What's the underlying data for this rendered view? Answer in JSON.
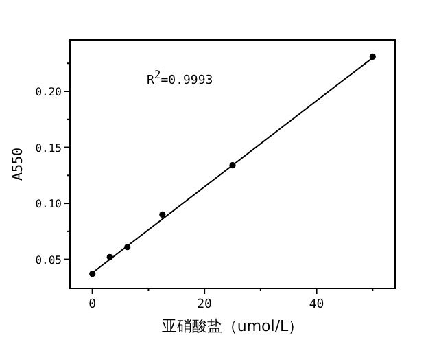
{
  "chart_data": {
    "type": "scatter",
    "xlabel": "亚硝酸盐（umol/L）",
    "ylabel": "A550",
    "marker": "circle",
    "xlim": [
      -4,
      54
    ],
    "ylim": [
      0.024,
      0.246
    ],
    "xticks": [
      0,
      {
        "value": 10,
        "label": null
      },
      20,
      {
        "value": 30,
        "label": null
      },
      40,
      {
        "value": 50,
        "label": null
      }
    ],
    "yticks": [
      {
        "value": 0.05,
        "label": "0.05"
      },
      {
        "value": 0.075,
        "label": null
      },
      {
        "value": 0.1,
        "label": "0.10"
      },
      {
        "value": 0.125,
        "label": null
      },
      {
        "value": 0.15,
        "label": "0.15"
      },
      {
        "value": 0.175,
        "label": null
      },
      {
        "value": 0.2,
        "label": "0.20"
      },
      {
        "value": 0.225,
        "label": null
      }
    ],
    "annotations": [
      "R$^{2}$=0.9993"
    ],
    "series": [
      {
        "color": "#000000",
        "x": [
          0,
          3.125,
          6.25,
          12.5,
          25,
          50
        ],
        "values": [
          0.037,
          0.052,
          0.061,
          0.09,
          0.134,
          0.231
        ]
      },
      {
        "type": "line",
        "color": "#000000",
        "marker": "none",
        "x": [
          0,
          50
        ],
        "values": [
          0.038,
          0.23
        ]
      }
    ]
  }
}
